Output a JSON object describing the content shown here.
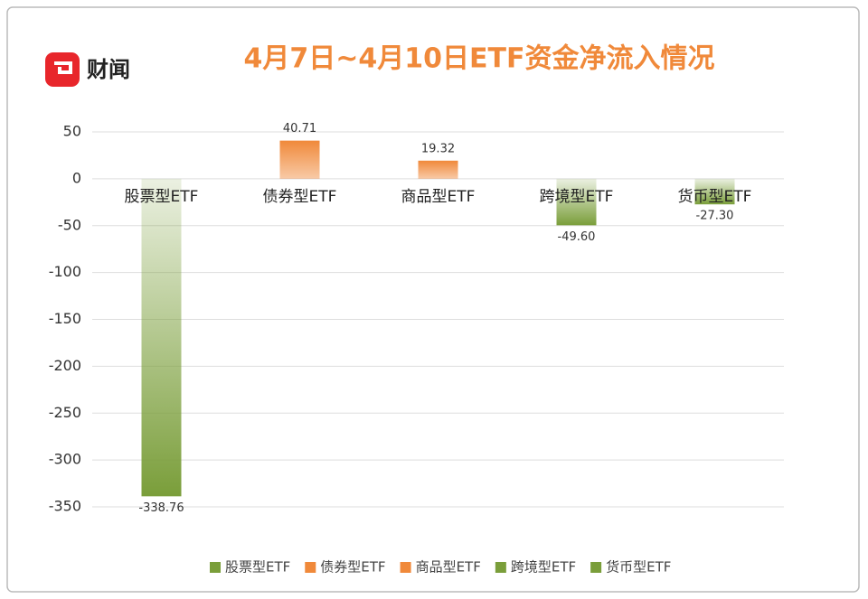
{
  "logo": "财闻",
  "chart_data": {
    "type": "bar",
    "title": "4月7日~4月10日ETF资金净流入情况",
    "categories": [
      "股票型ETF",
      "债券型ETF",
      "商品型ETF",
      "跨境型ETF",
      "货币型ETF"
    ],
    "values": [
      -338.76,
      40.71,
      19.32,
      -49.6,
      -27.3
    ],
    "value_labels": [
      "-338.76",
      "40.71",
      "19.32",
      "-49.60",
      "-27.30"
    ],
    "colors": [
      "#7a9e3a",
      "#f0893a",
      "#f0893a",
      "#7a9e3a",
      "#7a9e3a"
    ],
    "ylim": [
      -350,
      50
    ],
    "yticks": [
      50,
      0,
      -50,
      -100,
      -150,
      -200,
      -250,
      -300,
      -350
    ],
    "grid": true,
    "legend": "bottom"
  }
}
